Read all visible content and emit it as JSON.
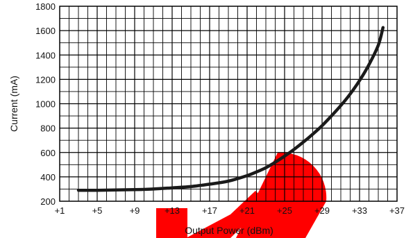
{
  "chart_data": {
    "type": "line",
    "title": "",
    "xlabel": "Output Power (dBm)",
    "ylabel": "Current (mA)",
    "xlim": [
      1,
      37
    ],
    "ylim": [
      200,
      1800
    ],
    "xticks": [
      1,
      5,
      9,
      13,
      17,
      21,
      25,
      29,
      33,
      37
    ],
    "xtick_labels": [
      "+1",
      "+5",
      "+9",
      "+13",
      "+17",
      "+21",
      "+25",
      "+29",
      "+33",
      "+37"
    ],
    "yticks": [
      200,
      400,
      600,
      800,
      1000,
      1200,
      1400,
      1600,
      1800
    ],
    "ytick_labels": [
      "200",
      "400",
      "600",
      "800",
      "1000",
      "1200",
      "1400",
      "1600",
      "1800"
    ],
    "x_minor_step": 1,
    "y_minor_step": 100,
    "grid": true,
    "series": [
      {
        "name": "",
        "color": "#1a1a1a",
        "x": [
          3,
          5,
          7,
          9,
          11,
          13,
          15,
          17,
          19,
          21,
          22,
          23,
          24,
          25,
          26,
          27,
          28,
          29,
          30,
          31,
          32,
          33,
          34,
          35,
          35.5
        ],
        "y": [
          290,
          290,
          292,
          295,
          300,
          310,
          320,
          340,
          365,
          410,
          440,
          475,
          520,
          570,
          625,
          685,
          750,
          820,
          900,
          985,
          1080,
          1190,
          1320,
          1480,
          1625
        ]
      }
    ]
  },
  "watermark": {
    "text": "LTD",
    "color": "#ff0000"
  }
}
